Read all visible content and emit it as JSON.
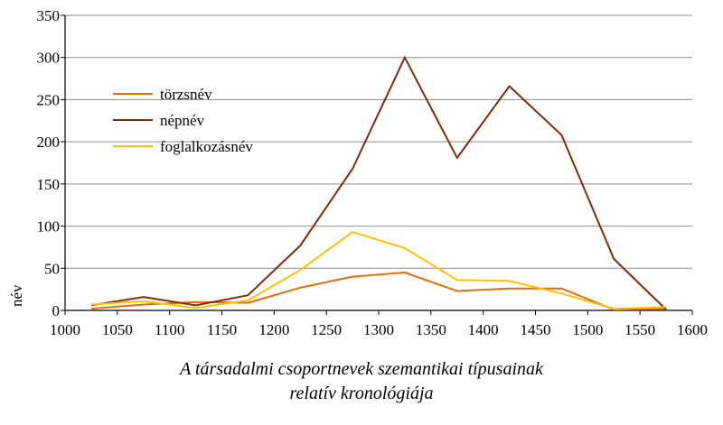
{
  "chart_data": {
    "type": "line",
    "title": "",
    "xlabel": "",
    "ylabel": "név",
    "xlim": [
      1000,
      1600
    ],
    "ylim": [
      0,
      350
    ],
    "x_ticks": [
      1000,
      1050,
      1100,
      1150,
      1200,
      1250,
      1300,
      1350,
      1400,
      1450,
      1500,
      1550,
      1600
    ],
    "y_ticks": [
      0,
      50,
      100,
      150,
      200,
      250,
      300,
      350
    ],
    "grid": "horizontal",
    "legend_position": "upper-left",
    "x": [
      1025,
      1075,
      1125,
      1175,
      1225,
      1275,
      1325,
      1375,
      1425,
      1475,
      1525,
      1575
    ],
    "series": [
      {
        "name": "törzsnév",
        "color": "#e46c0a",
        "values": [
          2,
          7,
          10,
          9,
          27,
          40,
          45,
          23,
          26,
          26,
          1,
          2
        ]
      },
      {
        "name": "népnév",
        "color": "#7f2a0a",
        "values": [
          6,
          16,
          6,
          18,
          77,
          168,
          300,
          181,
          266,
          208,
          61,
          1
        ]
      },
      {
        "name": "foglalkozásnév",
        "color": "#ffc000",
        "values": [
          7,
          11,
          3,
          12,
          48,
          93,
          74,
          36,
          35,
          20,
          2,
          4
        ]
      }
    ]
  },
  "caption": {
    "line1": "A társadalmi csoportnevek szemantikai típusainak",
    "line2": "relatív kronológiája"
  }
}
